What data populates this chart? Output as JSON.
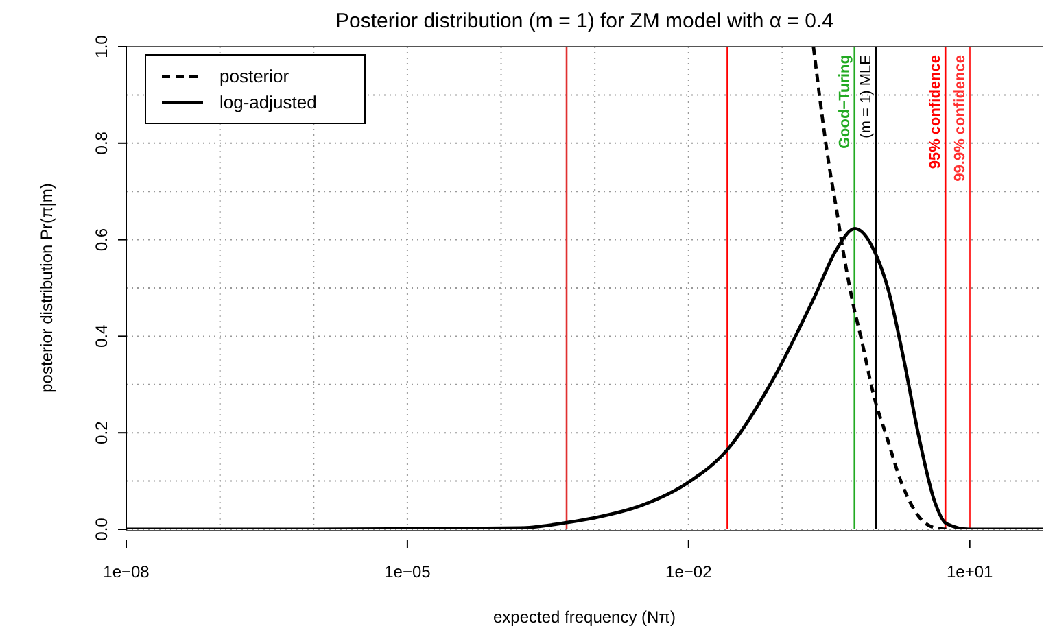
{
  "chart_data": {
    "type": "line",
    "title": "Posterior distribution (m = 1) for ZM model with α = 0.4",
    "xlabel": "expected frequency (Nπ)",
    "ylabel": "posterior distribution Pr(π|m)",
    "log": "x",
    "grid": true,
    "legend": "top left",
    "xlim": [
      1e-08,
      60
    ],
    "ylim": [
      0,
      1
    ],
    "xticks": [
      {
        "value": 1e-08,
        "label": "1e−08"
      },
      {
        "value": 1e-07,
        "label": null
      },
      {
        "value": 1e-06,
        "label": null
      },
      {
        "value": 1e-05,
        "label": "1e−05"
      },
      {
        "value": 0.0001,
        "label": null
      },
      {
        "value": 0.001,
        "label": null
      },
      {
        "value": 0.01,
        "label": "1e−02"
      },
      {
        "value": 0.1,
        "label": null
      },
      {
        "value": 1,
        "label": null
      },
      {
        "value": 10,
        "label": "1e+01"
      }
    ],
    "yticks": [
      {
        "value": 0,
        "label": "0.0"
      },
      {
        "value": 0.1,
        "label": null
      },
      {
        "value": 0.2,
        "label": "0.2"
      },
      {
        "value": 0.3,
        "label": null
      },
      {
        "value": 0.4,
        "label": "0.4"
      },
      {
        "value": 0.5,
        "label": null
      },
      {
        "value": 0.6,
        "label": "0.6"
      },
      {
        "value": 0.7,
        "label": null
      },
      {
        "value": 0.8,
        "label": "0.8"
      },
      {
        "value": 0.9,
        "label": null
      },
      {
        "value": 1,
        "label": "1.0"
      }
    ],
    "series": [
      {
        "name": "posterior",
        "color": "#000000",
        "line_style": "dashed",
        "x": [
          0.215,
          0.318,
          0.381,
          0.426,
          0.565,
          0.706,
          0.938,
          1.31,
          1.84,
          2.88,
          4.27,
          5.62
        ],
        "values": [
          1.0,
          0.75,
          0.66,
          0.6,
          0.47,
          0.39,
          0.28,
          0.19,
          0.1,
          0.026,
          0.003,
          0
        ]
      },
      {
        "name": "log-adjusted",
        "color": "#000000",
        "line_style": "solid",
        "x": [
          1e-08,
          1e-06,
          1e-05,
          0.000164,
          0.0005,
          0.001,
          0.0032,
          0.0099,
          0.0257,
          0.0794,
          0.219,
          0.38,
          0.596,
          0.989,
          1.38,
          1.95,
          2.88,
          4.27,
          5.62,
          9.9,
          60
        ],
        "values": [
          0,
          0,
          0.001,
          0.003,
          0.014,
          0.024,
          0.05,
          0.097,
          0.164,
          0.31,
          0.48,
          0.58,
          0.623,
          0.571,
          0.49,
          0.358,
          0.19,
          0.055,
          0.012,
          0,
          0
        ]
      }
    ],
    "ref_lines": [
      {
        "axis": "x",
        "value": 0.0005,
        "label": null,
        "color": "#e03030"
      },
      {
        "axis": "x",
        "value": 0.026,
        "label": null,
        "color": "#ff0000"
      },
      {
        "axis": "x",
        "value": 0.59,
        "label": "Good−Turing",
        "color": "#22aa22"
      },
      {
        "axis": "x",
        "value": 1,
        "label": "(m = 1) MLE",
        "color": "#000000"
      },
      {
        "axis": "x",
        "value": 5.5,
        "label": "95% confidence",
        "color": "#ff0000"
      },
      {
        "axis": "x",
        "value": 10,
        "label": "99.9% confidence",
        "color": "#ff3030"
      }
    ]
  }
}
